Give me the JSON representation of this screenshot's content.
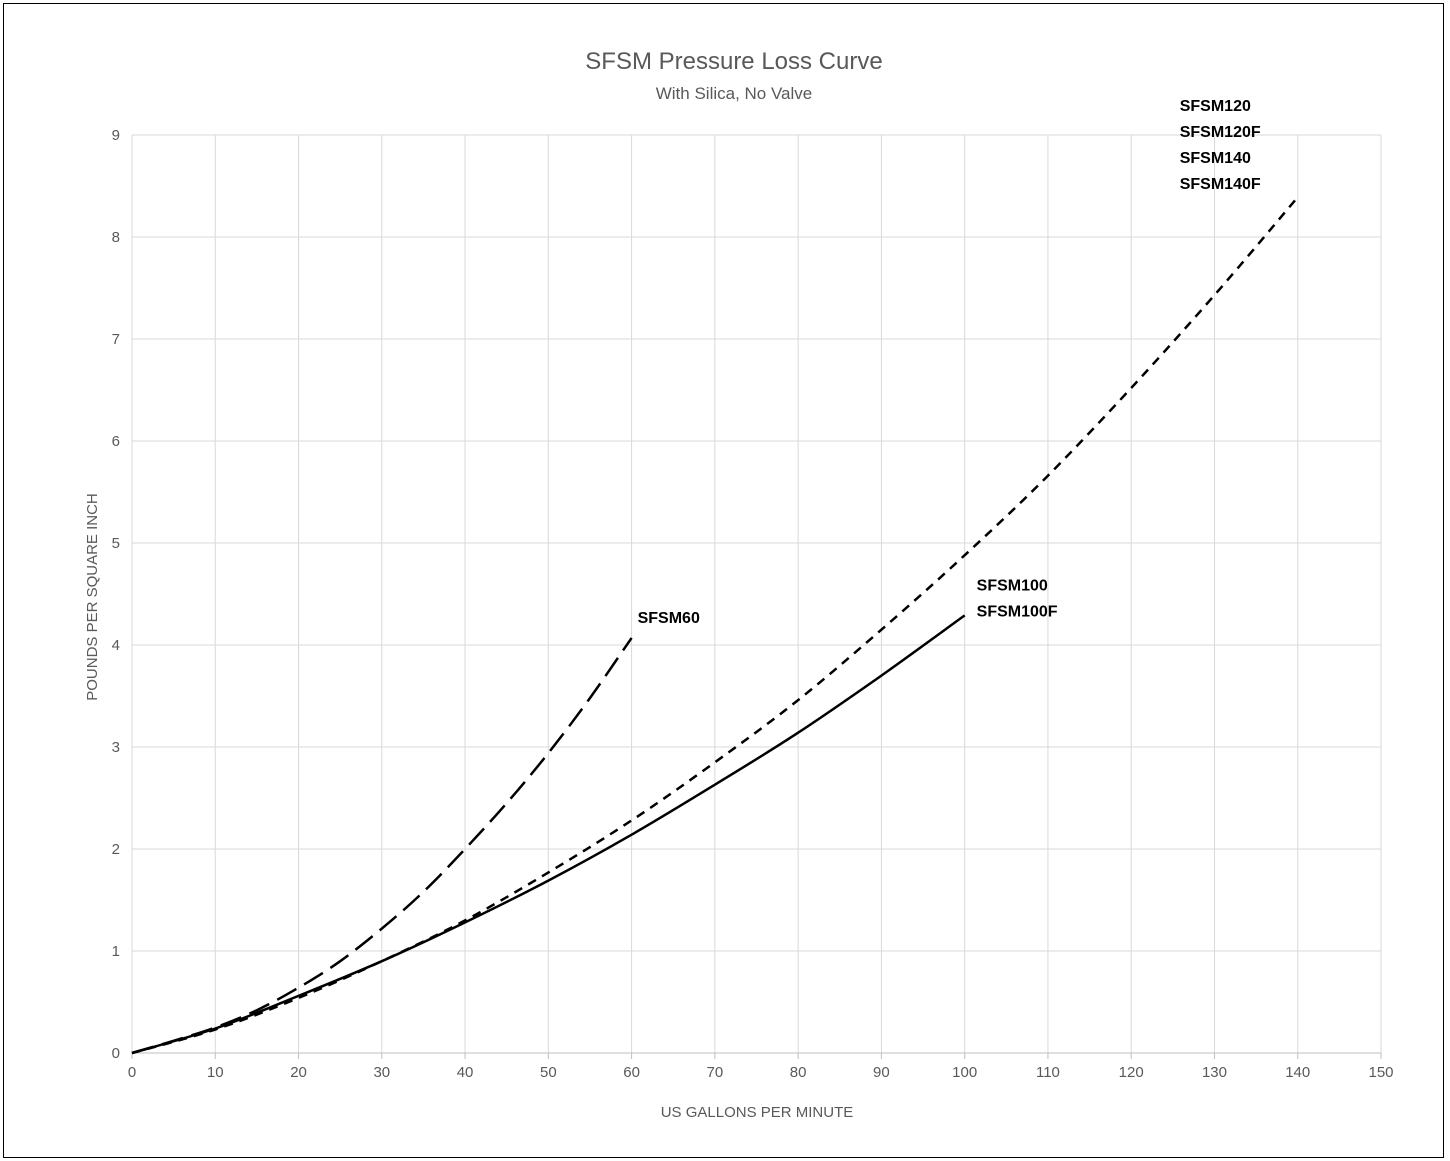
{
  "chart_data": {
    "type": "line",
    "title": "SFSM Pressure Loss Curve",
    "subtitle": "With Silica, No Valve",
    "xlabel": "US GALLONS PER MINUTE",
    "ylabel": "POUNDS PER SQUARE INCH",
    "xlim": [
      0,
      150
    ],
    "ylim": [
      0,
      9
    ],
    "xticks": [
      0,
      10,
      20,
      30,
      40,
      50,
      60,
      70,
      80,
      90,
      100,
      110,
      120,
      130,
      140,
      150
    ],
    "yticks": [
      0,
      1,
      2,
      3,
      4,
      5,
      6,
      7,
      8,
      9
    ],
    "grid": true,
    "legend": "none",
    "series": [
      {
        "style": "long-dash",
        "color": "#000000",
        "labels": [
          "SFSM60"
        ],
        "x": [
          0,
          5,
          10,
          15,
          20,
          25,
          30,
          35,
          40,
          45,
          50,
          55,
          60
        ],
        "y": [
          0.0,
          0.12,
          0.25,
          0.42,
          0.64,
          0.9,
          1.22,
          1.58,
          2.0,
          2.45,
          2.94,
          3.48,
          4.07
        ]
      },
      {
        "style": "solid",
        "color": "#000000",
        "labels": [
          "SFSM100",
          "SFSM100F"
        ],
        "x": [
          0,
          10,
          20,
          30,
          40,
          50,
          60,
          70,
          80,
          90,
          100
        ],
        "y": [
          0.0,
          0.24,
          0.56,
          0.9,
          1.28,
          1.69,
          2.14,
          2.63,
          3.14,
          3.7,
          4.29
        ]
      },
      {
        "style": "short-dash",
        "color": "#000000",
        "labels": [
          "SFSM120",
          "SFSM120F",
          "SFSM140",
          "SFSM140F"
        ],
        "x": [
          0,
          10,
          20,
          30,
          40,
          50,
          60,
          70,
          80,
          90,
          100,
          110,
          120,
          130,
          140
        ],
        "y": [
          0.0,
          0.23,
          0.54,
          0.9,
          1.3,
          1.77,
          2.28,
          2.85,
          3.46,
          4.15,
          4.88,
          5.66,
          6.52,
          7.43,
          8.39
        ]
      }
    ]
  }
}
